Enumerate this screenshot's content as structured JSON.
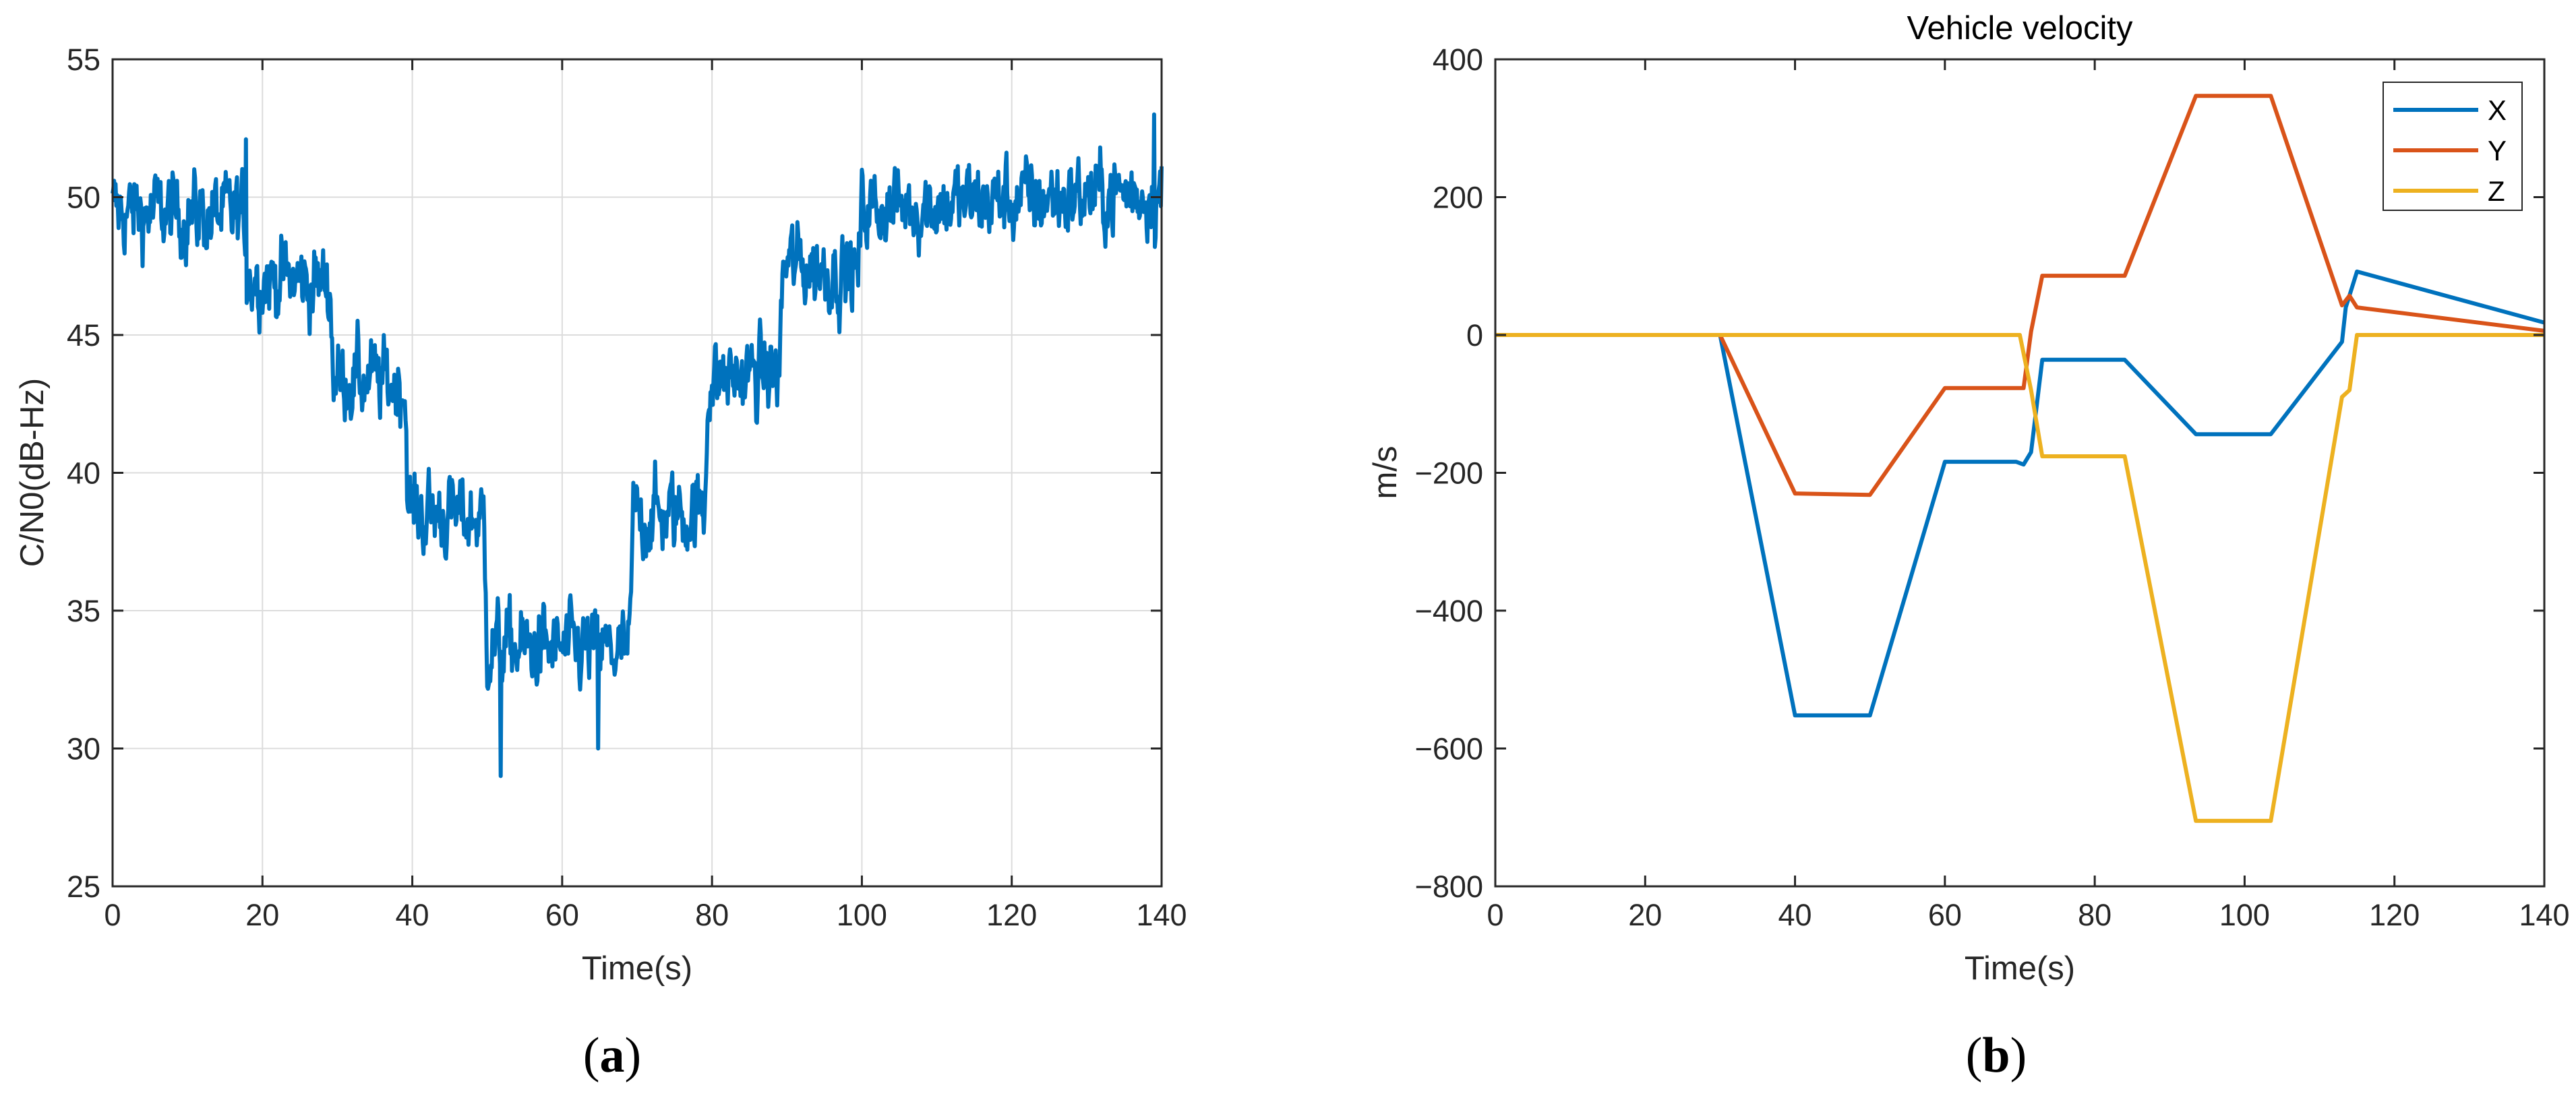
{
  "chart_data": [
    {
      "type": "line",
      "panel": "(a)",
      "title": "",
      "xlabel": "Time(s)",
      "ylabel": "C/N0(dB-Hz)",
      "xlim": [
        0,
        140
      ],
      "ylim": [
        25,
        55
      ],
      "xticks": [
        0,
        20,
        40,
        60,
        80,
        100,
        120,
        140
      ],
      "yticks": [
        25,
        30,
        35,
        40,
        45,
        50,
        55
      ],
      "grid": true,
      "series": [
        {
          "color": "#0072BD",
          "noisy": true,
          "x": [
            0,
            17.5,
            18,
            29,
            29.5,
            39,
            39.5,
            49.5,
            50,
            69,
            69.5,
            79,
            79.5,
            89,
            89.5,
            99.5,
            100,
            140
          ],
          "y": [
            49.5,
            49.3,
            47.2,
            46.8,
            43.5,
            43.2,
            38.6,
            38.3,
            33.7,
            33.5,
            38.4,
            38.6,
            43.4,
            43.6,
            47.6,
            47.2,
            49.6,
            50.2
          ],
          "extremes": [
            {
              "x": 17.8,
              "y": 52.1
            },
            {
              "x": 51.8,
              "y": 29.0
            },
            {
              "x": 64.8,
              "y": 30.0
            },
            {
              "x": 139.0,
              "y": 53.0
            }
          ]
        }
      ]
    },
    {
      "type": "line",
      "panel": "(b)",
      "title": "Vehicle velocity",
      "xlabel": "Time(s)",
      "ylabel": "m/s",
      "xlim": [
        0,
        140
      ],
      "ylim": [
        -800,
        400
      ],
      "xticks": [
        0,
        20,
        40,
        60,
        80,
        100,
        120,
        140
      ],
      "yticks": [
        -800,
        -600,
        -400,
        -200,
        0,
        200,
        400
      ],
      "grid": false,
      "legend_position": "top-right",
      "series": [
        {
          "name": "X",
          "color": "#0072BD",
          "x": [
            0,
            30,
            40,
            50,
            60,
            69.5,
            70.5,
            71.5,
            73,
            84,
            93.5,
            103.5,
            113,
            113.5,
            115,
            140
          ],
          "y": [
            0,
            0,
            -552,
            -552,
            -184,
            -184,
            -188,
            -170,
            -36,
            -36,
            -144,
            -144,
            -10,
            40,
            92,
            18
          ]
        },
        {
          "name": "Y",
          "color": "#D95319",
          "x": [
            0,
            30,
            40,
            50,
            60,
            70.5,
            71.5,
            73,
            84,
            93.5,
            103.5,
            113,
            114,
            115,
            140
          ],
          "y": [
            0,
            0,
            -230,
            -232,
            -77,
            -77,
            5,
            86,
            86,
            347,
            347,
            43,
            57,
            40,
            6
          ]
        },
        {
          "name": "Z",
          "color": "#EDB120",
          "x": [
            0,
            70,
            71.5,
            73,
            84,
            93.5,
            103.5,
            113,
            114,
            115,
            140
          ],
          "y": [
            0,
            0,
            -80,
            -176,
            -176,
            -705,
            -705,
            -90,
            -80,
            0,
            0
          ]
        }
      ]
    }
  ],
  "labels": {
    "a_prefix": "(",
    "a_letter": "a",
    "a_suffix": ")",
    "b_prefix": "(",
    "b_letter": "b",
    "b_suffix": ")"
  }
}
